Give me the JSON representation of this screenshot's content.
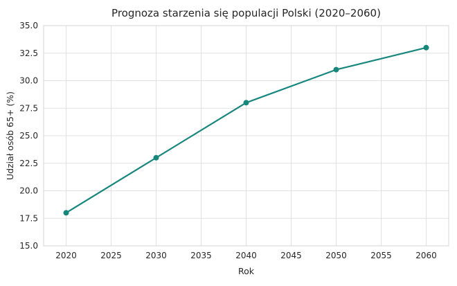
{
  "chart_data": {
    "type": "line",
    "title": "Prognoza starzenia się populacji Polski (2020–2060)",
    "xlabel": "Rok",
    "ylabel": "Udział osób 65+ (%)",
    "x": [
      2020,
      2030,
      2040,
      2050,
      2060
    ],
    "y": [
      18.0,
      23.0,
      28.0,
      31.0,
      33.0
    ],
    "xticks": [
      2020,
      2025,
      2030,
      2035,
      2040,
      2045,
      2050,
      2055,
      2060
    ],
    "yticks": [
      15.0,
      17.5,
      20.0,
      22.5,
      25.0,
      27.5,
      30.0,
      32.5,
      35.0
    ],
    "xlim": [
      2017.5,
      2062.5
    ],
    "ylim": [
      15.0,
      35.0
    ],
    "grid": true,
    "legend": "none",
    "line_color": "#17867d",
    "marker": "circle",
    "grid_color": "#e1e1e1",
    "border_color": "#d4d4d4",
    "background_color": "#ffffff",
    "text_color": "#262626"
  }
}
